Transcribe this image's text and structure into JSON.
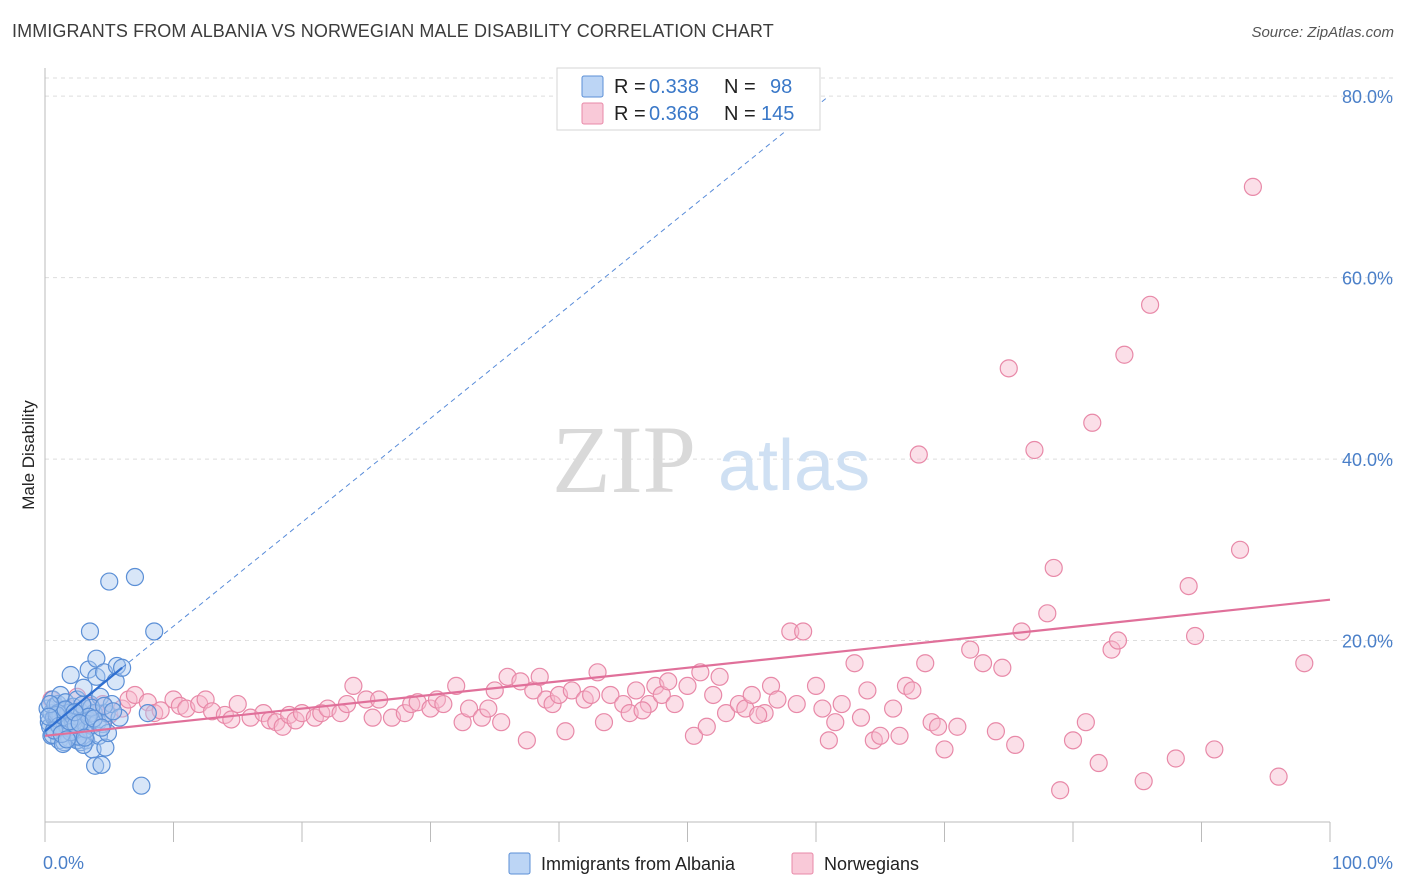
{
  "title": "IMMIGRANTS FROM ALBANIA VS NORWEGIAN MALE DISABILITY CORRELATION CHART",
  "source": "Source: ZipAtlas.com",
  "watermark": {
    "part1": "ZIP",
    "part2": "atlas"
  },
  "legend_top": {
    "rows": [
      {
        "r_label": "R =",
        "r_value": "0.338",
        "n_label": "N =",
        "n_value": "98"
      },
      {
        "r_label": "R =",
        "r_value": "0.368",
        "n_label": "N =",
        "n_value": "145"
      }
    ]
  },
  "legend_bottom": {
    "items": [
      {
        "label": "Immigrants from Albania"
      },
      {
        "label": "Norwegians"
      }
    ]
  },
  "colors": {
    "blue_fill": "#a9c8f0",
    "blue_stroke": "#5b8fd6",
    "blue_line": "#2f6fd0",
    "pink_fill": "#f6b7cb",
    "pink_stroke": "#e889a8",
    "pink_line": "#e0709a",
    "grid": "#dddddd",
    "tick_label": "#4a7fc8"
  },
  "chart_data": {
    "type": "scatter",
    "title": "IMMIGRANTS FROM ALBANIA VS NORWEGIAN MALE DISABILITY CORRELATION CHART",
    "xlabel": "",
    "ylabel": "Male Disability",
    "xlim": [
      0,
      100
    ],
    "ylim": [
      0,
      82
    ],
    "x_tick_labels": [
      "0.0%",
      "100.0%"
    ],
    "y_ticks": [
      20,
      40,
      60,
      80
    ],
    "y_tick_labels": [
      "20.0%",
      "40.0%",
      "60.0%",
      "80.0%"
    ],
    "grid": true,
    "legend_position": "top-center",
    "series": [
      {
        "name": "Immigrants from Albania",
        "R": 0.338,
        "N": 98,
        "trend": {
          "x": [
            0,
            6
          ],
          "y": [
            10.0,
            17.0
          ],
          "extended_dashed_to": [
            61,
            80
          ]
        },
        "points": [
          [
            0.2,
            12.5
          ],
          [
            0.3,
            11.0
          ],
          [
            0.4,
            10.5
          ],
          [
            0.5,
            12.0
          ],
          [
            0.5,
            9.5
          ],
          [
            0.6,
            13.5
          ],
          [
            0.7,
            11.5
          ],
          [
            0.8,
            10.0
          ],
          [
            0.8,
            12.8
          ],
          [
            0.9,
            11.2
          ],
          [
            1.0,
            10.8
          ],
          [
            1.0,
            13.0
          ],
          [
            1.1,
            9.0
          ],
          [
            1.2,
            11.7
          ],
          [
            1.2,
            14.0
          ],
          [
            1.3,
            10.2
          ],
          [
            1.4,
            12.3
          ],
          [
            1.5,
            9.8
          ],
          [
            1.5,
            11.0
          ],
          [
            1.6,
            13.2
          ],
          [
            1.7,
            10.5
          ],
          [
            1.8,
            12.0
          ],
          [
            1.9,
            9.2
          ],
          [
            2.0,
            11.5
          ],
          [
            2.0,
            16.2
          ],
          [
            2.1,
            10.0
          ],
          [
            2.2,
            12.7
          ],
          [
            2.3,
            9.5
          ],
          [
            2.4,
            11.8
          ],
          [
            2.5,
            13.5
          ],
          [
            2.6,
            10.3
          ],
          [
            2.7,
            12.2
          ],
          [
            2.8,
            8.8
          ],
          [
            2.9,
            11.0
          ],
          [
            3.0,
            14.8
          ],
          [
            3.0,
            10.0
          ],
          [
            3.1,
            12.5
          ],
          [
            3.2,
            9.0
          ],
          [
            3.3,
            11.3
          ],
          [
            3.4,
            16.8
          ],
          [
            3.5,
            13.0
          ],
          [
            3.6,
            10.6
          ],
          [
            3.7,
            8.0
          ],
          [
            3.8,
            12.0
          ],
          [
            3.9,
            6.2
          ],
          [
            4.0,
            16.0
          ],
          [
            4.0,
            18.0
          ],
          [
            4.1,
            11.0
          ],
          [
            4.2,
            9.5
          ],
          [
            4.3,
            13.8
          ],
          [
            4.4,
            6.3
          ],
          [
            4.5,
            10.8
          ],
          [
            4.6,
            16.5
          ],
          [
            4.7,
            8.2
          ],
          [
            4.8,
            12.0
          ],
          [
            4.9,
            9.8
          ],
          [
            5.0,
            26.5
          ],
          [
            5.2,
            13.0
          ],
          [
            5.5,
            15.5
          ],
          [
            5.6,
            17.2
          ],
          [
            5.8,
            11.5
          ],
          [
            6.0,
            17.0
          ],
          [
            3.5,
            21.0
          ],
          [
            7.0,
            27.0
          ],
          [
            8.5,
            21.0
          ],
          [
            7.5,
            4.0
          ],
          [
            8.0,
            12.0
          ],
          [
            1.5,
            8.8
          ],
          [
            2.5,
            9.0
          ],
          [
            3.0,
            8.5
          ],
          [
            1.0,
            12.0
          ],
          [
            1.8,
            10.4
          ],
          [
            2.2,
            11.0
          ],
          [
            0.6,
            9.6
          ],
          [
            1.4,
            8.6
          ],
          [
            2.6,
            9.4
          ],
          [
            3.2,
            10.2
          ],
          [
            3.6,
            12.6
          ],
          [
            0.9,
            11.8
          ],
          [
            1.1,
            10.6
          ],
          [
            1.6,
            12.4
          ],
          [
            2.0,
            9.9
          ],
          [
            2.4,
            10.7
          ],
          [
            2.9,
            12.9
          ],
          [
            3.4,
            11.6
          ],
          [
            0.4,
            13.0
          ],
          [
            0.7,
            10.1
          ],
          [
            1.3,
            9.7
          ],
          [
            1.9,
            11.1
          ],
          [
            2.3,
            12.1
          ],
          [
            2.7,
            10.9
          ],
          [
            3.1,
            9.3
          ],
          [
            3.8,
            11.4
          ],
          [
            4.4,
            10.4
          ],
          [
            4.6,
            12.8
          ],
          [
            5.3,
            12.2
          ],
          [
            0.3,
            11.6
          ],
          [
            1.7,
            9.1
          ]
        ]
      },
      {
        "name": "Norwegians",
        "R": 0.368,
        "N": 145,
        "trend": {
          "x": [
            0,
            100
          ],
          "y": [
            9.5,
            24.5
          ]
        },
        "points": [
          [
            0.5,
            13.5
          ],
          [
            1.0,
            12.0
          ],
          [
            1.5,
            11.0
          ],
          [
            2.0,
            12.5
          ],
          [
            2.5,
            13.8
          ],
          [
            3.0,
            11.5
          ],
          [
            3.5,
            12.8
          ],
          [
            4.0,
            12.0
          ],
          [
            4.5,
            13.0
          ],
          [
            5.0,
            11.8
          ],
          [
            6.0,
            12.5
          ],
          [
            6.5,
            13.5
          ],
          [
            7.0,
            14.0
          ],
          [
            8.0,
            13.2
          ],
          [
            8.5,
            12.0
          ],
          [
            9.0,
            12.3
          ],
          [
            10.0,
            13.5
          ],
          [
            10.5,
            12.8
          ],
          [
            11.0,
            12.5
          ],
          [
            12.0,
            13.0
          ],
          [
            12.5,
            13.5
          ],
          [
            13.0,
            12.2
          ],
          [
            14.0,
            11.8
          ],
          [
            14.5,
            11.3
          ],
          [
            15.0,
            13.0
          ],
          [
            16.0,
            11.5
          ],
          [
            17.0,
            12.0
          ],
          [
            17.5,
            11.2
          ],
          [
            18.0,
            11.0
          ],
          [
            18.5,
            10.5
          ],
          [
            19.0,
            11.8
          ],
          [
            19.5,
            11.2
          ],
          [
            20.0,
            12.0
          ],
          [
            21.0,
            11.5
          ],
          [
            21.5,
            12.0
          ],
          [
            22.0,
            12.5
          ],
          [
            23.0,
            12.0
          ],
          [
            23.5,
            13.0
          ],
          [
            24.0,
            15.0
          ],
          [
            25.0,
            13.5
          ],
          [
            25.5,
            11.5
          ],
          [
            26.0,
            13.5
          ],
          [
            27.0,
            11.5
          ],
          [
            28.0,
            12.0
          ],
          [
            28.5,
            13.0
          ],
          [
            29.0,
            13.2
          ],
          [
            30.0,
            12.5
          ],
          [
            30.5,
            13.5
          ],
          [
            31.0,
            13.0
          ],
          [
            32.0,
            15.0
          ],
          [
            32.5,
            11.0
          ],
          [
            33.0,
            12.5
          ],
          [
            34.0,
            11.5
          ],
          [
            34.5,
            12.5
          ],
          [
            35.0,
            14.5
          ],
          [
            35.5,
            11.0
          ],
          [
            36.0,
            16.0
          ],
          [
            37.0,
            15.5
          ],
          [
            38.0,
            14.5
          ],
          [
            38.5,
            16.0
          ],
          [
            39.0,
            13.5
          ],
          [
            39.5,
            13.0
          ],
          [
            40.0,
            14.0
          ],
          [
            40.5,
            10.0
          ],
          [
            41.0,
            14.5
          ],
          [
            42.0,
            13.5
          ],
          [
            42.5,
            14.0
          ],
          [
            43.0,
            16.5
          ],
          [
            43.5,
            11.0
          ],
          [
            44.0,
            14.0
          ],
          [
            45.0,
            13.0
          ],
          [
            45.5,
            12.0
          ],
          [
            46.0,
            14.5
          ],
          [
            47.0,
            13.0
          ],
          [
            47.5,
            15.0
          ],
          [
            48.0,
            14.0
          ],
          [
            48.5,
            15.5
          ],
          [
            49.0,
            13.0
          ],
          [
            50.0,
            15.0
          ],
          [
            50.5,
            9.5
          ],
          [
            51.0,
            16.5
          ],
          [
            51.5,
            10.5
          ],
          [
            52.0,
            14.0
          ],
          [
            52.5,
            16.0
          ],
          [
            53.0,
            12.0
          ],
          [
            54.0,
            13.0
          ],
          [
            54.5,
            12.5
          ],
          [
            55.0,
            14.0
          ],
          [
            56.0,
            12.0
          ],
          [
            56.5,
            15.0
          ],
          [
            57.0,
            13.5
          ],
          [
            58.0,
            21.0
          ],
          [
            58.5,
            13.0
          ],
          [
            59.0,
            21.0
          ],
          [
            60.0,
            15.0
          ],
          [
            60.5,
            12.5
          ],
          [
            61.0,
            9.0
          ],
          [
            61.5,
            11.0
          ],
          [
            62.0,
            13.0
          ],
          [
            63.0,
            17.5
          ],
          [
            64.0,
            14.5
          ],
          [
            64.5,
            9.0
          ],
          [
            65.0,
            9.5
          ],
          [
            66.0,
            12.5
          ],
          [
            66.5,
            9.5
          ],
          [
            67.0,
            15.0
          ],
          [
            67.5,
            14.5
          ],
          [
            68.0,
            40.5
          ],
          [
            68.5,
            17.5
          ],
          [
            69.0,
            11.0
          ],
          [
            69.5,
            10.5
          ],
          [
            70.0,
            8.0
          ],
          [
            71.0,
            10.5
          ],
          [
            72.0,
            19.0
          ],
          [
            73.0,
            17.5
          ],
          [
            74.0,
            10.0
          ],
          [
            74.5,
            17.0
          ],
          [
            75.0,
            50.0
          ],
          [
            75.5,
            8.5
          ],
          [
            76.0,
            21.0
          ],
          [
            77.0,
            41.0
          ],
          [
            78.0,
            23.0
          ],
          [
            78.5,
            28.0
          ],
          [
            79.0,
            3.5
          ],
          [
            80.0,
            9.0
          ],
          [
            81.0,
            11.0
          ],
          [
            81.5,
            44.0
          ],
          [
            82.0,
            6.5
          ],
          [
            83.0,
            19.0
          ],
          [
            83.5,
            20.0
          ],
          [
            84.0,
            51.5
          ],
          [
            85.5,
            4.5
          ],
          [
            86.0,
            57.0
          ],
          [
            88.0,
            7.0
          ],
          [
            89.0,
            26.0
          ],
          [
            89.5,
            20.5
          ],
          [
            91.0,
            8.0
          ],
          [
            93.0,
            30.0
          ],
          [
            94.0,
            70.0
          ],
          [
            96.0,
            5.0
          ],
          [
            98.0,
            17.5
          ],
          [
            63.5,
            11.5
          ],
          [
            55.5,
            11.8
          ],
          [
            46.5,
            12.3
          ],
          [
            37.5,
            9.0
          ]
        ]
      }
    ]
  }
}
